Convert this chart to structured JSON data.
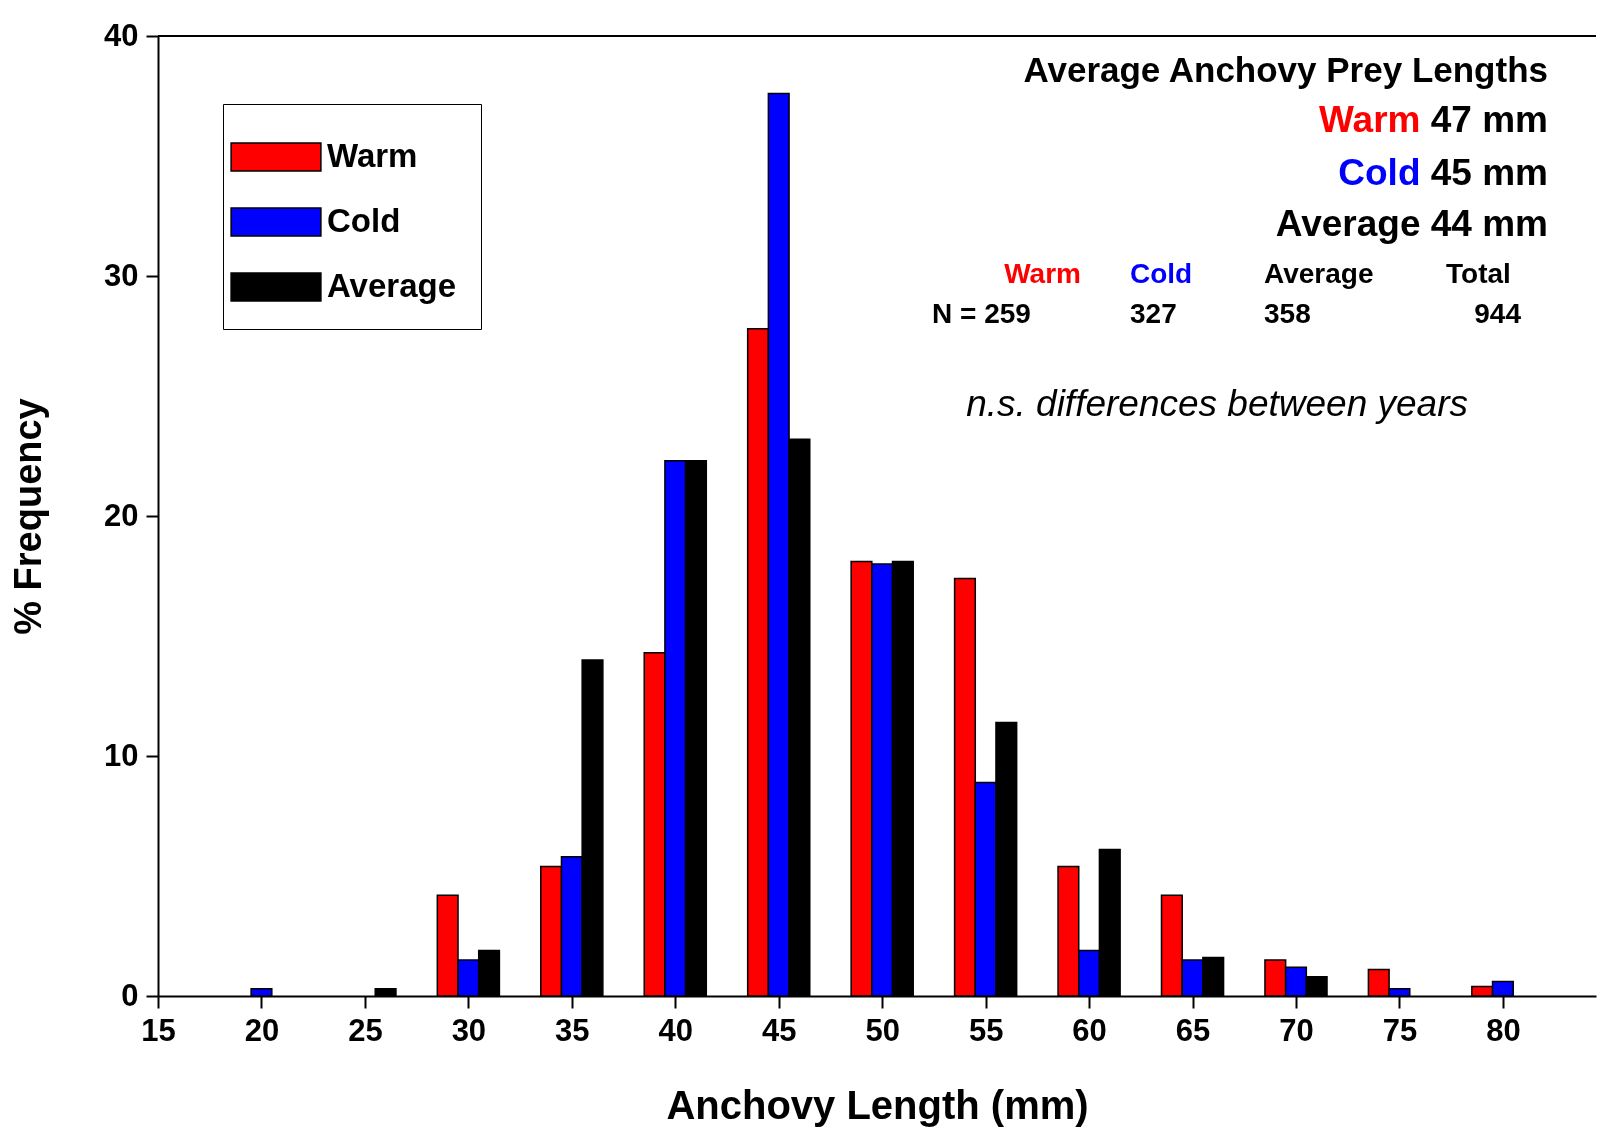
{
  "chart_data": {
    "type": "bar",
    "title": "Average Anchovy Prey Lengths",
    "xlabel": "Anchovy Length (mm)",
    "ylabel": "% Frequency",
    "x": [
      20,
      25,
      30,
      35,
      40,
      45,
      50,
      55,
      60,
      65,
      70,
      75,
      80
    ],
    "series": [
      {
        "name": "Warm",
        "color": "#ff0000",
        "values": [
          null,
          null,
          4.2,
          5.4,
          14.3,
          27.8,
          18.1,
          17.4,
          5.4,
          4.2,
          1.5,
          1.1,
          0.4
        ]
      },
      {
        "name": "Cold",
        "color": "#0000ff",
        "values": [
          0.3,
          null,
          1.5,
          5.8,
          22.3,
          37.6,
          18.0,
          8.9,
          1.9,
          1.5,
          1.2,
          0.3,
          0.6
        ]
      },
      {
        "name": "Average",
        "color": "#000000",
        "values": [
          null,
          0.3,
          1.9,
          14.0,
          22.3,
          23.2,
          18.1,
          11.4,
          6.1,
          1.6,
          0.8,
          null,
          null
        ]
      }
    ],
    "xlim": [
      15,
      84.5
    ],
    "xticks": [
      15,
      20,
      25,
      30,
      35,
      40,
      45,
      50,
      55,
      60,
      65,
      70,
      75,
      80
    ],
    "ylim": [
      0,
      40
    ],
    "yticks": [
      0,
      10,
      20,
      30,
      40
    ],
    "grid": false,
    "legend": "top left",
    "annotations": [
      "Warm 47 mm",
      "Cold 45 mm",
      "Average 44 mm",
      "Warm",
      "Cold",
      "Average",
      "Total",
      "N = 259",
      "327",
      "358",
      "944",
      "n.s. differences between years"
    ]
  }
}
